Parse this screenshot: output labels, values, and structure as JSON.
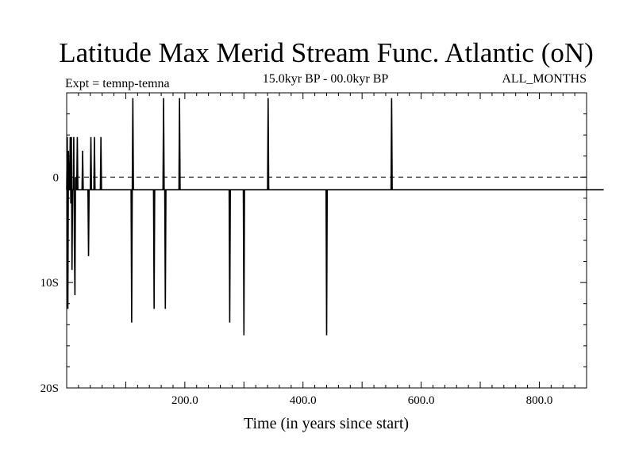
{
  "chart_data": {
    "type": "line",
    "title": "Latitude Max Merid Stream Func. Atlantic (oN)",
    "subtitle_left": "Expt = temnp-temna",
    "subtitle_center": "15.0kyr BP - 00.0kyr BP",
    "subtitle_right": "ALL_MONTHS",
    "xlabel": "Time (in years since start)",
    "ylabel": "",
    "xlim": [
      0,
      880
    ],
    "ylim": [
      -20,
      8
    ],
    "x_ticks": [
      {
        "value": 200,
        "label": "200.0"
      },
      {
        "value": 400,
        "label": "400.0"
      },
      {
        "value": 600,
        "label": "600.0"
      },
      {
        "value": 800,
        "label": "800.0"
      }
    ],
    "y_ticks": [
      {
        "value": 0,
        "label": "0"
      },
      {
        "value": -10,
        "label": "10S"
      },
      {
        "value": -20,
        "label": "20S"
      }
    ],
    "reference_line": {
      "y": 0,
      "style": "dashed"
    },
    "series": [
      {
        "name": "temnp-temna",
        "x_start": 0,
        "x_step": 1,
        "values": [
          -1.2,
          3.8,
          -12.5,
          2.5,
          -1.2,
          -1.2,
          3.8,
          -2.5,
          3.8,
          -8.8,
          -1.2,
          -1.2,
          3.8,
          -6.2,
          -11.2,
          0,
          -1.2,
          -1.2,
          3.8,
          -1.2,
          -1.2,
          -1.2,
          -1.2,
          -1.2,
          -1.2,
          -1.2,
          -1.2,
          2.5,
          -1.2,
          -1.2,
          -1.2,
          -1.2,
          -1.2,
          -1.2,
          -1.2,
          -1.2,
          -1.2,
          -7.5,
          -1.2,
          -1.2,
          -1.2,
          3.8,
          -1.2,
          -1.2,
          -1.2,
          -1.2,
          -1.2,
          3.8,
          -1.2,
          -1.2,
          -1.2,
          -1.2,
          -1.2,
          -1.2,
          -1.2,
          -1.2,
          -1.2,
          -1.2,
          3.8,
          -1.2,
          -1.2,
          -1.2,
          -1.2,
          -1.2,
          -1.2,
          -1.2,
          -1.2,
          -1.2,
          -1.2,
          -1.2,
          -1.2,
          -1.2,
          -1.2,
          -1.2,
          -1.2,
          -1.2,
          -1.2,
          -1.2,
          -1.2,
          -1.2,
          -1.2,
          -1.2,
          -1.2,
          -1.2,
          -1.2,
          -1.2,
          -1.2,
          -1.2,
          -1.2,
          -1.2,
          -1.2,
          -1.2,
          -1.2,
          -1.2,
          -1.2,
          -1.2,
          -1.2,
          -1.2,
          -1.2,
          -1.2,
          -1.2,
          -1.2,
          -1.2,
          -1.2,
          -1.2,
          -1.2,
          -1.2,
          -1.2,
          -1.2,
          -1.2,
          -13.8,
          -1.2,
          7.5,
          -1.2,
          -1.2,
          -1.2,
          -1.2,
          -1.2,
          -1.2,
          -1.2,
          -1.2,
          -1.2,
          -1.2,
          -1.2,
          -1.2,
          -1.2,
          -1.2,
          -1.2,
          -1.2,
          -1.2,
          -1.2,
          -1.2,
          -1.2,
          -1.2,
          -1.2,
          -1.2,
          -1.2,
          -1.2,
          -1.2,
          -1.2,
          -1.2,
          -1.2,
          -1.2,
          -1.2,
          -1.2,
          -1.2,
          -1.2,
          -1.2,
          -12.5,
          -1.2,
          -1.2,
          -1.2,
          -1.2,
          -1.2,
          -1.2,
          -1.2,
          -1.2,
          -1.2,
          -1.2,
          -1.2,
          -1.2,
          -1.2,
          -1.2,
          -1.2,
          7.5,
          -1.2,
          -1.2,
          -12.5,
          -1.2,
          -1.2,
          -1.2,
          -1.2,
          -1.2,
          -1.2,
          -1.2,
          -1.2,
          -1.2,
          -1.2,
          -1.2,
          -1.2,
          -1.2,
          -1.2,
          -1.2,
          -1.2,
          -1.2,
          -1.2,
          -1.2,
          -1.2,
          -1.2,
          -1.2,
          -1.2,
          7.5,
          -1.2,
          -1.2,
          -1.2,
          -1.2,
          -1.2,
          -1.2,
          -1.2,
          -1.2,
          -1.2,
          -1.2,
          -1.2,
          -1.2,
          -1.2,
          -1.2,
          -1.2,
          -1.2,
          -1.2,
          -1.2,
          -1.2,
          -1.2,
          -1.2,
          -1.2,
          -1.2,
          -1.2,
          -1.2,
          -1.2,
          -1.2,
          -1.2,
          -1.2,
          -1.2,
          -1.2,
          -1.2,
          -1.2,
          -1.2,
          -1.2,
          -1.2,
          -1.2,
          -1.2,
          -1.2,
          -1.2,
          -1.2,
          -1.2,
          -1.2,
          -1.2,
          -1.2,
          -1.2,
          -1.2,
          -1.2,
          -1.2,
          -1.2,
          -1.2,
          -1.2,
          -1.2,
          -1.2,
          -1.2,
          -1.2,
          -1.2,
          -1.2,
          -1.2,
          -1.2,
          -1.2,
          -1.2,
          -1.2,
          -1.2,
          -1.2,
          -1.2,
          -1.2,
          -1.2,
          -1.2,
          -1.2,
          -1.2,
          -1.2,
          -1.2,
          -1.2,
          -1.2,
          -1.2,
          -1.2,
          -1.2,
          -1.2,
          -1.2,
          -1.2,
          -1.2,
          -1.2,
          -1.2,
          -13.8,
          -1.2,
          -1.2,
          -1.2,
          -1.2,
          -1.2,
          -1.2,
          -1.2,
          -1.2,
          -1.2,
          -1.2,
          -1.2,
          -1.2,
          -1.2,
          -1.2,
          -1.2,
          -1.2,
          -1.2,
          -1.2,
          -1.2,
          -1.2,
          -1.2,
          -1.2,
          -1.2,
          -15,
          -1.2,
          -1.2,
          -1.2,
          -1.2,
          -1.2,
          -1.2,
          -1.2,
          -1.2,
          -1.2,
          -1.2,
          -1.2,
          -1.2,
          -1.2,
          -1.2,
          -1.2,
          -1.2,
          -1.2,
          -1.2,
          -1.2,
          -1.2,
          -1.2,
          -1.2,
          -1.2,
          -1.2,
          -1.2,
          -1.2,
          -1.2,
          -1.2,
          -1.2,
          -1.2,
          -1.2,
          -1.2,
          -1.2,
          -1.2,
          -1.2,
          -1.2,
          -1.2,
          -1.2,
          -1.2,
          -1.2,
          7.5,
          -1.2,
          -1.2,
          -1.2,
          -1.2,
          -1.2,
          -1.2,
          -1.2,
          -1.2,
          -1.2,
          -1.2,
          -1.2,
          -1.2,
          -1.2,
          -1.2,
          -1.2,
          -1.2,
          -1.2,
          -1.2,
          -1.2,
          -1.2,
          -1.2,
          -1.2,
          -1.2,
          -1.2,
          -1.2,
          -1.2,
          -1.2,
          -1.2,
          -1.2,
          -1.2,
          -1.2,
          -1.2,
          -1.2,
          -1.2,
          -1.2,
          -1.2,
          -1.2,
          -1.2,
          -1.2,
          -1.2,
          -1.2,
          -1.2,
          -1.2,
          -1.2,
          -1.2,
          -1.2,
          -1.2,
          -1.2,
          -1.2,
          -1.2,
          -1.2,
          -1.2,
          -1.2,
          -1.2,
          -1.2,
          -1.2,
          -1.2,
          -1.2,
          -1.2,
          -1.2,
          -1.2,
          -1.2,
          -1.2,
          -1.2,
          -1.2,
          -1.2,
          -1.2,
          -1.2,
          -1.2,
          -1.2,
          -1.2,
          -1.2,
          -1.2,
          -1.2,
          -1.2,
          -1.2,
          -1.2,
          -1.2,
          -1.2,
          -1.2,
          -1.2,
          -1.2,
          -1.2,
          -1.2,
          -1.2,
          -1.2,
          -1.2,
          -1.2,
          -1.2,
          -1.2,
          -1.2,
          -1.2,
          -1.2,
          -1.2,
          -1.2,
          -1.2,
          -1.2,
          -1.2,
          -15,
          -1.2,
          -1.2,
          -1.2,
          -1.2,
          -1.2,
          -1.2,
          -1.2,
          -1.2,
          -1.2,
          -1.2,
          -1.2,
          -1.2,
          -1.2,
          -1.2,
          -1.2,
          -1.2,
          -1.2,
          -1.2,
          -1.2,
          -1.2,
          -1.2,
          -1.2,
          -1.2,
          -1.2,
          -1.2,
          -1.2,
          -1.2,
          -1.2,
          -1.2,
          -1.2,
          -1.2,
          -1.2,
          -1.2,
          -1.2,
          -1.2,
          -1.2,
          -1.2,
          -1.2,
          -1.2,
          -1.2,
          -1.2,
          -1.2,
          -1.2,
          -1.2,
          -1.2,
          -1.2,
          -1.2,
          -1.2,
          -1.2,
          -1.2,
          -1.2,
          -1.2,
          -1.2,
          -1.2,
          -1.2,
          -1.2,
          -1.2,
          -1.2,
          -1.2,
          -1.2,
          -1.2,
          -1.2,
          -1.2,
          -1.2,
          -1.2,
          -1.2,
          -1.2,
          -1.2,
          -1.2,
          -1.2,
          -1.2,
          -1.2,
          -1.2,
          -1.2,
          -1.2,
          -1.2,
          -1.2,
          -1.2,
          -1.2,
          -1.2,
          -1.2,
          -1.2,
          -1.2,
          -1.2,
          -1.2,
          -1.2,
          -1.2,
          -1.2,
          -1.2,
          -1.2,
          -1.2,
          -1.2,
          -1.2,
          -1.2,
          -1.2,
          -1.2,
          -1.2,
          -1.2,
          -1.2,
          -1.2,
          -1.2,
          -1.2,
          -1.2,
          -1.2,
          -1.2,
          -1.2,
          -1.2,
          -1.2,
          -1.2,
          7.5,
          -1.2,
          -1.2,
          -1.2,
          -1.2,
          -1.2,
          -1.2,
          -1.2,
          -1.2,
          -1.2,
          -1.2,
          -1.2,
          -1.2,
          -1.2,
          -1.2,
          -1.2,
          -1.2,
          -1.2,
          -1.2,
          -1.2,
          -1.2,
          -1.2,
          -1.2,
          -1.2,
          -1.2,
          -1.2,
          -1.2,
          -1.2,
          -1.2,
          -1.2,
          -1.2,
          -1.2,
          -1.2,
          -1.2,
          -1.2,
          -1.2,
          -1.2,
          -1.2,
          -1.2,
          -1.2,
          -1.2,
          -1.2,
          -1.2,
          -1.2,
          -1.2,
          -1.2,
          -1.2,
          -1.2,
          -1.2,
          -1.2,
          -1.2,
          -1.2,
          -1.2,
          -1.2,
          -1.2,
          -1.2,
          -1.2,
          -1.2,
          -1.2,
          -1.2,
          -1.2,
          -1.2,
          -1.2,
          -1.2,
          -1.2,
          -1.2,
          -1.2,
          -1.2,
          -1.2,
          -1.2,
          -1.2,
          -1.2,
          -1.2,
          -1.2,
          -1.2,
          -1.2,
          -1.2,
          -1.2,
          -1.2,
          -1.2,
          -1.2,
          -1.2,
          -1.2,
          -1.2,
          -1.2,
          -1.2,
          -1.2,
          -1.2,
          -1.2,
          -1.2,
          -1.2,
          -1.2,
          -1.2,
          -1.2,
          -1.2,
          -1.2,
          -1.2,
          -1.2,
          -1.2,
          -1.2,
          -1.2,
          -1.2,
          -1.2,
          -1.2,
          -1.2,
          -1.2,
          -1.2,
          -1.2,
          -1.2,
          -1.2,
          -1.2,
          -1.2,
          -1.2,
          -1.2,
          -1.2,
          -1.2,
          -1.2,
          -1.2,
          -1.2,
          -1.2,
          -1.2,
          -1.2,
          -1.2,
          -1.2,
          -1.2,
          -1.2,
          -1.2,
          -1.2,
          -1.2,
          -1.2,
          -1.2,
          -1.2,
          -1.2,
          -1.2,
          -1.2,
          -1.2,
          -1.2,
          -1.2,
          -1.2,
          -1.2,
          -1.2,
          -1.2,
          -1.2,
          -1.2,
          -1.2,
          -1.2,
          -1.2,
          -1.2,
          -1.2,
          -1.2,
          -1.2,
          -1.2,
          -1.2,
          -1.2,
          -1.2,
          -1.2,
          -1.2,
          -1.2,
          -1.2,
          -1.2,
          -1.2,
          -1.2,
          -1.2,
          -1.2,
          -1.2,
          -1.2,
          -1.2,
          -1.2,
          -1.2,
          -1.2,
          -1.2,
          -1.2,
          -1.2,
          -1.2,
          -1.2,
          -1.2,
          -1.2,
          -1.2,
          -1.2,
          -1.2,
          -1.2,
          -1.2,
          -1.2,
          -1.2,
          -1.2,
          -1.2,
          -1.2,
          -1.2,
          -1.2,
          -1.2,
          -1.2,
          -1.2,
          -1.2,
          -1.2,
          -1.2,
          -1.2,
          -1.2,
          -1.2,
          -1.2,
          -1.2,
          -1.2,
          -1.2,
          -1.2,
          -1.2,
          -1.2,
          -1.2,
          -1.2,
          -1.2,
          -1.2,
          -1.2,
          -1.2,
          -1.2,
          -1.2,
          -1.2,
          -1.2,
          -1.2,
          -1.2,
          -1.2,
          -1.2,
          -1.2,
          -1.2,
          -1.2,
          -1.2,
          -1.2,
          -1.2,
          -1.2,
          -1.2,
          -1.2,
          -1.2,
          -1.2,
          -1.2,
          -1.2,
          -1.2,
          -1.2,
          -1.2,
          -1.2,
          -1.2,
          -1.2,
          -1.2,
          -1.2,
          -1.2,
          -1.2,
          -1.2,
          -1.2,
          -1.2,
          -1.2,
          -1.2,
          -1.2,
          -1.2,
          -1.2,
          -1.2,
          -1.2,
          -1.2,
          -1.2,
          -1.2,
          -1.2,
          -1.2,
          -1.2,
          -1.2,
          -1.2,
          -1.2,
          -1.2,
          -1.2,
          -1.2,
          -1.2,
          -1.2,
          -1.2,
          -1.2,
          -1.2,
          -1.2,
          -1.2,
          -1.2,
          -1.2,
          -1.2,
          -1.2,
          -1.2,
          -1.2,
          -1.2,
          -1.2,
          -1.2,
          -1.2,
          -1.2,
          -1.2,
          -1.2,
          -1.2,
          -1.2,
          -1.2,
          -1.2,
          -1.2,
          -1.2,
          -1.2,
          -1.2,
          -1.2,
          -1.2,
          -1.2,
          -1.2,
          -1.2,
          -1.2,
          -1.2,
          -1.2,
          -1.2,
          -1.2,
          -1.2,
          -1.2,
          -1.2,
          -1.2,
          -1.2,
          -1.2,
          -1.2,
          -1.2,
          -1.2,
          -1.2,
          -1.2,
          -1.2,
          -1.2,
          -1.2,
          -1.2,
          -1.2,
          -1.2,
          -1.2,
          -1.2,
          -1.2,
          -1.2,
          -1.2,
          -1.2,
          -1.2,
          -1.2,
          -1.2,
          -1.2,
          -1.2,
          -1.2,
          -1.2,
          -1.2,
          -1.2,
          -1.2,
          -1.2,
          -1.2,
          -1.2,
          -1.2,
          -1.2,
          -1.2,
          -1.2,
          -1.2,
          -1.2,
          -1.2,
          -1.2,
          -1.2,
          -1.2,
          -1.2,
          -1.2,
          -1.2,
          -1.2,
          -1.2,
          -1.2,
          -1.2,
          -1.2,
          -1.2,
          -1.2,
          -1.2,
          -1.2
        ]
      }
    ]
  }
}
